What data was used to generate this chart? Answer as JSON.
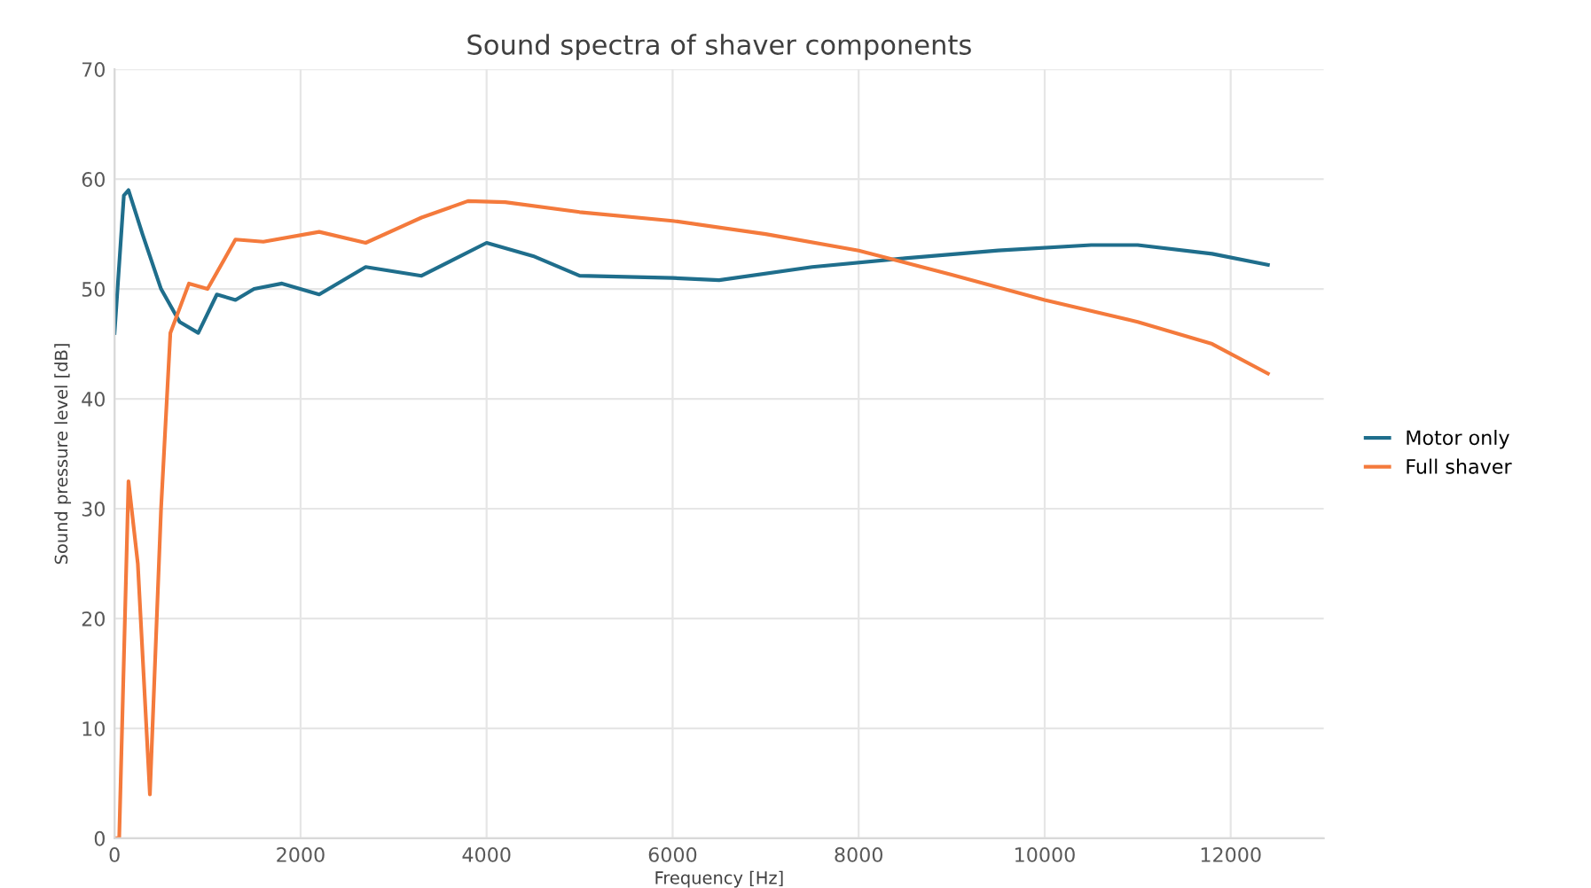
{
  "chart_data": {
    "type": "line",
    "title": "Sound spectra of shaver components",
    "xlabel": "Frequency [Hz]",
    "ylabel": "Sound pressure level [dB]",
    "xlim": [
      0,
      13000
    ],
    "xticks": [
      0,
      2000,
      4000,
      6000,
      8000,
      10000,
      12000
    ],
    "ylim": [
      0,
      70
    ],
    "yticks": [
      0,
      10,
      20,
      30,
      40,
      50,
      60,
      70
    ],
    "grid": true,
    "legend": "right",
    "marker": "none",
    "line_style": "solid",
    "series": [
      {
        "name": "Motor only",
        "color": "#1f6e8c",
        "x": [
          0,
          100,
          150,
          300,
          500,
          700,
          900,
          1100,
          1300,
          1500,
          1800,
          2200,
          2700,
          3300,
          4000,
          4500,
          5000,
          6000,
          6500,
          7500,
          8500,
          9500,
          10500,
          11000,
          11800,
          12400
        ],
        "values": [
          46,
          58.5,
          59,
          55,
          50,
          47,
          46,
          49.5,
          49,
          50,
          50.5,
          49.5,
          52,
          51.2,
          54.2,
          53,
          51.2,
          51,
          50.8,
          52,
          52.8,
          53.5,
          54,
          54,
          53.2,
          52.2
        ]
      },
      {
        "name": "Full shaver",
        "color": "#f47a3c",
        "x": [
          0,
          50,
          150,
          250,
          380,
          500,
          600,
          800,
          1000,
          1300,
          1600,
          2200,
          2700,
          3300,
          3800,
          4200,
          5000,
          6000,
          7000,
          8000,
          9000,
          10000,
          11000,
          11800,
          12400
        ],
        "values": [
          0,
          0,
          32.5,
          25,
          4,
          30,
          46,
          50.5,
          50,
          54.5,
          54.3,
          55.2,
          54.2,
          56.5,
          58,
          57.9,
          57,
          56.2,
          55,
          53.5,
          51.3,
          49,
          47,
          45,
          42.3
        ]
      }
    ]
  }
}
